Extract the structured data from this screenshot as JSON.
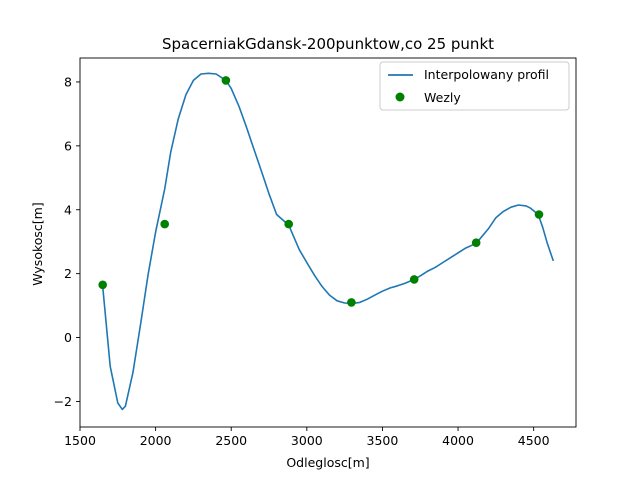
{
  "chart_data": {
    "type": "line",
    "title": "SpacerniakGdansk-200punktow,co 25 punkt",
    "xlabel": "Odleglosc[m]",
    "ylabel": "Wysokosc[m]",
    "xlim": [
      1500,
      4780
    ],
    "ylim": [
      -2.8,
      8.75
    ],
    "xticks": [
      1500,
      2000,
      2500,
      3000,
      3500,
      4000,
      4500
    ],
    "xtick_labels": [
      "1500",
      "2000",
      "2500",
      "3000",
      "3500",
      "4000",
      "4500"
    ],
    "yticks": [
      -2,
      0,
      2,
      4,
      6,
      8
    ],
    "ytick_labels": [
      "−2",
      "0",
      "2",
      "4",
      "6",
      "8"
    ],
    "grid": false,
    "legend_position": "top-right",
    "series": [
      {
        "name": "Interpolowany profil",
        "kind": "line",
        "color": "#1f77b4",
        "x": [
          1650,
          1700,
          1750,
          1780,
          1800,
          1850,
          1900,
          1950,
          2000,
          2060,
          2100,
          2150,
          2200,
          2250,
          2300,
          2350,
          2400,
          2465,
          2500,
          2550,
          2600,
          2650,
          2700,
          2750,
          2800,
          2880,
          2950,
          3000,
          3050,
          3100,
          3150,
          3200,
          3250,
          3300,
          3350,
          3400,
          3450,
          3500,
          3550,
          3600,
          3650,
          3710,
          3750,
          3800,
          3850,
          3900,
          3950,
          4000,
          4050,
          4120,
          4200,
          4250,
          4300,
          4350,
          4400,
          4450,
          4480,
          4530,
          4560,
          4590,
          4630
        ],
        "y": [
          1.6,
          -0.9,
          -2.05,
          -2.25,
          -2.15,
          -1.1,
          0.4,
          1.95,
          3.3,
          4.65,
          5.8,
          6.85,
          7.6,
          8.05,
          8.25,
          8.27,
          8.25,
          8.05,
          7.8,
          7.25,
          6.6,
          5.9,
          5.2,
          4.5,
          3.85,
          3.52,
          2.75,
          2.35,
          1.95,
          1.6,
          1.33,
          1.15,
          1.08,
          1.07,
          1.1,
          1.2,
          1.33,
          1.45,
          1.55,
          1.62,
          1.7,
          1.82,
          1.93,
          2.08,
          2.2,
          2.35,
          2.5,
          2.65,
          2.8,
          2.95,
          3.4,
          3.75,
          3.95,
          4.08,
          4.15,
          4.12,
          4.05,
          3.85,
          3.45,
          2.95,
          2.4
        ]
      },
      {
        "name": "Wezly",
        "kind": "scatter",
        "color": "#008000",
        "x": [
          1650,
          2060,
          2465,
          2880,
          3295,
          3710,
          4120,
          4535
        ],
        "y": [
          1.65,
          3.55,
          8.05,
          3.55,
          1.1,
          1.82,
          2.97,
          3.85
        ]
      }
    ]
  }
}
